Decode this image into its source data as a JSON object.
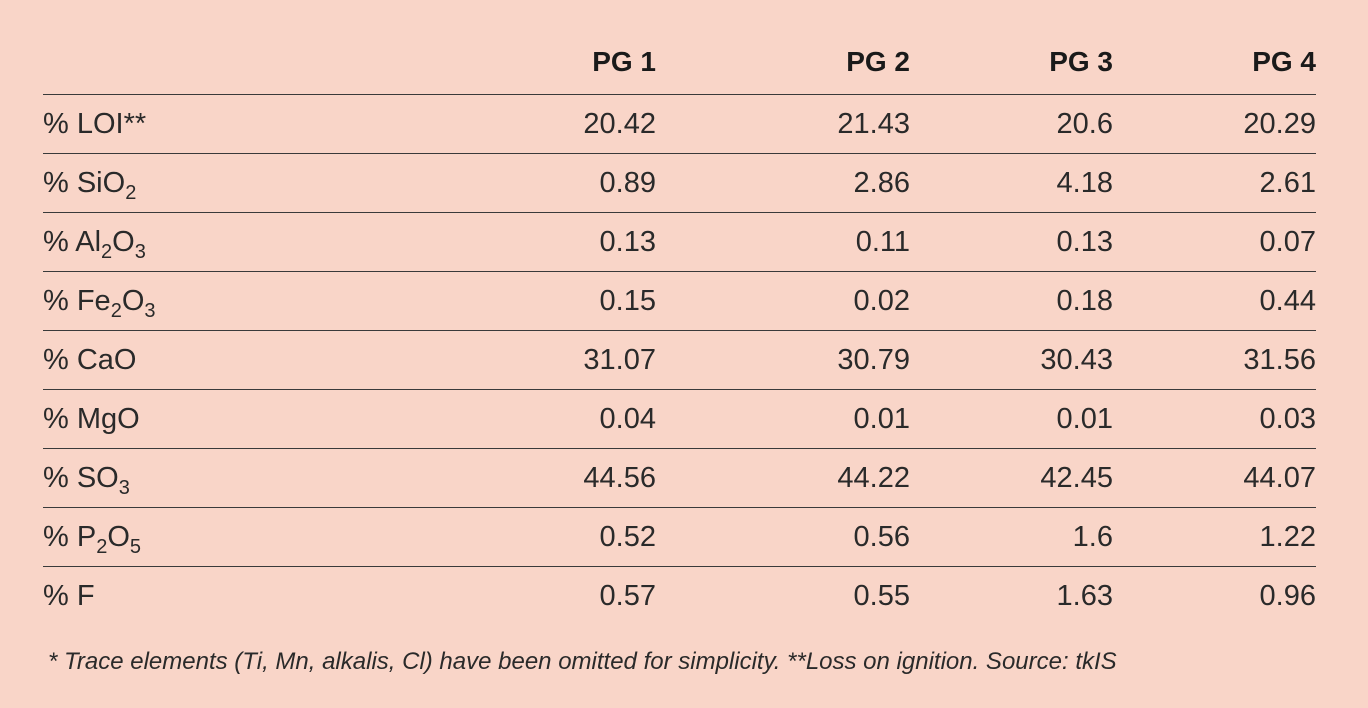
{
  "table": {
    "columns": [
      "",
      "PG 1",
      "PG 2",
      "PG 3",
      "PG 4"
    ],
    "rows": [
      {
        "label": {
          "prefix": "% LOI**",
          "parts": []
        },
        "values": [
          "20.42",
          "21.43",
          "20.6",
          "20.29"
        ]
      },
      {
        "label": {
          "prefix": "% SiO",
          "parts": [
            {
              "sub": "2"
            }
          ]
        },
        "values": [
          "0.89",
          "2.86",
          "4.18",
          "2.61"
        ]
      },
      {
        "label": {
          "prefix": "% Al",
          "parts": [
            {
              "sub": "2"
            },
            {
              "text": "O"
            },
            {
              "sub": "3"
            }
          ]
        },
        "values": [
          "0.13",
          "0.11",
          "0.13",
          "0.07"
        ]
      },
      {
        "label": {
          "prefix": "% Fe",
          "parts": [
            {
              "sub": "2"
            },
            {
              "text": "O"
            },
            {
              "sub": "3"
            }
          ]
        },
        "values": [
          "0.15",
          "0.02",
          "0.18",
          "0.44"
        ]
      },
      {
        "label": {
          "prefix": "% CaO",
          "parts": []
        },
        "values": [
          "31.07",
          "30.79",
          "30.43",
          "31.56"
        ]
      },
      {
        "label": {
          "prefix": "% MgO",
          "parts": []
        },
        "values": [
          "0.04",
          "0.01",
          "0.01",
          "0.03"
        ]
      },
      {
        "label": {
          "prefix": "% SO",
          "parts": [
            {
              "sub": "3"
            }
          ]
        },
        "values": [
          "44.56",
          "44.22",
          "42.45",
          "44.07"
        ]
      },
      {
        "label": {
          "prefix": "% P",
          "parts": [
            {
              "sub": "2"
            },
            {
              "text": "O"
            },
            {
              "sub": "5"
            }
          ]
        },
        "values": [
          "0.52",
          "0.56",
          "1.6",
          "1.22"
        ]
      },
      {
        "label": {
          "prefix": "% F",
          "parts": []
        },
        "values": [
          "0.57",
          "0.55",
          "1.63",
          "0.96"
        ]
      }
    ]
  },
  "footnote": "* Trace elements (Ti, Mn, alkalis, Cl) have been omitted for simplicity. **Loss on ignition. Source: tkIS",
  "colors": {
    "background": "#f9d5c8",
    "rule": "#3a3a3a",
    "text": "#1a1a1a"
  }
}
